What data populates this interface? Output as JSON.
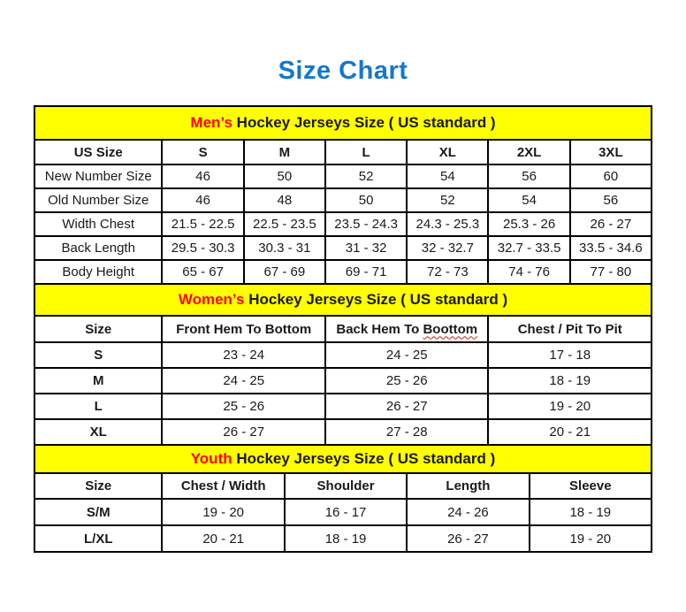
{
  "page": {
    "title": "Size Chart"
  },
  "colors": {
    "title_blue": "#1478c8",
    "band_yellow": "#ffff00",
    "accent_red": "#ff0000",
    "border_black": "#000000"
  },
  "sections": [
    {
      "id": "mens",
      "band": {
        "highlight": "Men’s",
        "rest": " Hockey Jerseys Size ( US standard )"
      },
      "columns": [
        {
          "label": "US Size"
        },
        {
          "label": "S"
        },
        {
          "label": "M"
        },
        {
          "label": "L"
        },
        {
          "label": "XL"
        },
        {
          "label": "2XL"
        },
        {
          "label": "3XL"
        }
      ],
      "rows": [
        {
          "label": "New Number Size",
          "values": [
            "46",
            "50",
            "52",
            "54",
            "56",
            "60"
          ]
        },
        {
          "label": "Old Number Size",
          "values": [
            "46",
            "48",
            "50",
            "52",
            "54",
            "56"
          ]
        },
        {
          "label": "Width Chest",
          "values": [
            "21.5 - 22.5",
            "22.5 - 23.5",
            "23.5 - 24.3",
            "24.3 - 25.3",
            "25.3 - 26",
            "26 - 27"
          ]
        },
        {
          "label": "Back Length",
          "values": [
            "29.5 - 30.3",
            "30.3 - 31",
            "31 - 32",
            "32 - 32.7",
            "32.7 - 33.5",
            "33.5 - 34.6"
          ]
        },
        {
          "label": "Body Height",
          "values": [
            "65 - 67",
            "67 - 69",
            "69 - 71",
            "72 - 73",
            "74 - 76",
            "77 - 80"
          ]
        }
      ]
    },
    {
      "id": "womens",
      "band": {
        "highlight": "Women’s",
        "rest": " Hockey Jerseys Size ( US standard )"
      },
      "columns": [
        {
          "label": "Size"
        },
        {
          "label": "Front Hem To Bottom"
        },
        {
          "label": "Back Hem To ",
          "wavy_suffix": "Boottom"
        },
        {
          "label": "Chest / Pit To Pit"
        }
      ],
      "rows": [
        {
          "label": "S",
          "values": [
            "23 - 24",
            "24 - 25",
            "17 - 18"
          ]
        },
        {
          "label": "M",
          "values": [
            "24 - 25",
            "25 - 26",
            "18 - 19"
          ]
        },
        {
          "label": "L",
          "values": [
            "25 - 26",
            "26 - 27",
            "19 - 20"
          ]
        },
        {
          "label": "XL",
          "values": [
            "26 - 27",
            "27 - 28",
            "20 - 21"
          ]
        }
      ]
    },
    {
      "id": "youth",
      "band": {
        "highlight": "Youth",
        "rest": " Hockey Jerseys Size ( US standard )"
      },
      "columns": [
        {
          "label": "Size"
        },
        {
          "label": "Chest / Width"
        },
        {
          "label": "Shoulder"
        },
        {
          "label": "Length"
        },
        {
          "label": "Sleeve"
        }
      ],
      "rows": [
        {
          "label": "S/M",
          "values": [
            "19 - 20",
            "16 - 17",
            "24 - 26",
            "18 - 19"
          ]
        },
        {
          "label": "L/XL",
          "values": [
            "20 - 21",
            "18 - 19",
            "26 - 27",
            "19 - 20"
          ]
        }
      ]
    }
  ]
}
